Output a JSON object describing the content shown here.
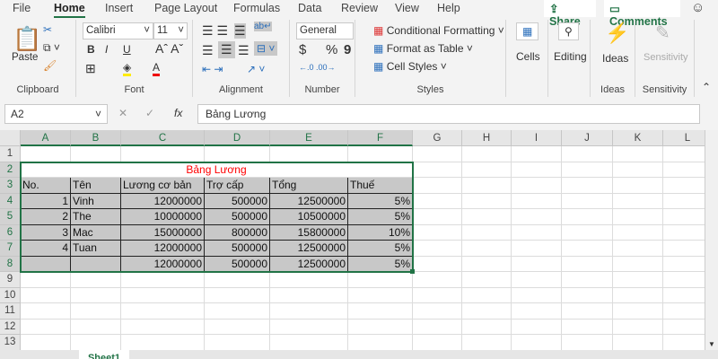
{
  "menu": {
    "tabs": [
      "File",
      "Home",
      "Insert",
      "Page Layout",
      "Formulas",
      "Data",
      "Review",
      "View",
      "Help"
    ],
    "active": "Home",
    "share": "Share",
    "comments": "Comments"
  },
  "ribbon": {
    "clipboard": {
      "label": "Clipboard",
      "paste": "Paste"
    },
    "font": {
      "label": "Font",
      "name": "Calibri",
      "size": "11",
      "bold": "B",
      "italic": "I",
      "underline": "U"
    },
    "alignment": {
      "label": "Alignment"
    },
    "number": {
      "label": "Number",
      "format": "General",
      "currency": "$",
      "percent": "%",
      "comma": "9"
    },
    "styles": {
      "label": "Styles",
      "conditional": "Conditional Formatting",
      "table": "Format as Table",
      "cellstyles": "Cell Styles"
    },
    "cells": {
      "label": "Cells"
    },
    "editing": {
      "label": "Editing"
    },
    "ideas": {
      "label": "Ideas",
      "group": "Ideas"
    },
    "sensitivity": {
      "label": "Sensitivity",
      "group": "Sensitivity"
    }
  },
  "formula_bar": {
    "name_box": "A2",
    "fx": "fx",
    "value": "Bảng Lương"
  },
  "sheet": {
    "columns": [
      "A",
      "B",
      "C",
      "D",
      "E",
      "F",
      "G",
      "H",
      "I",
      "J",
      "K",
      "L"
    ],
    "rows": [
      "1",
      "2",
      "3",
      "4",
      "5",
      "6",
      "7",
      "8",
      "9",
      "10",
      "11",
      "12",
      "13"
    ],
    "title": "Bảng Lương",
    "title_color": "#ff0000",
    "headers": [
      "No.",
      "Tên",
      "Lương cơ bản",
      "Trợ cấp",
      "Tổng",
      "Thuế"
    ],
    "data": [
      [
        "1",
        "Vinh",
        "12000000",
        "500000",
        "12500000",
        "5%"
      ],
      [
        "2",
        "The",
        "10000000",
        "500000",
        "10500000",
        "5%"
      ],
      [
        "3",
        "Mac",
        "15000000",
        "800000",
        "15800000",
        "10%"
      ],
      [
        "4",
        "Tuan",
        "12000000",
        "500000",
        "12500000",
        "5%"
      ],
      [
        "",
        "",
        "12000000",
        "500000",
        "12500000",
        "5%"
      ]
    ],
    "sheet_tab": "Sheet1"
  },
  "colors": {
    "accent": "#217346",
    "table_fill": "#c8c8c8"
  }
}
